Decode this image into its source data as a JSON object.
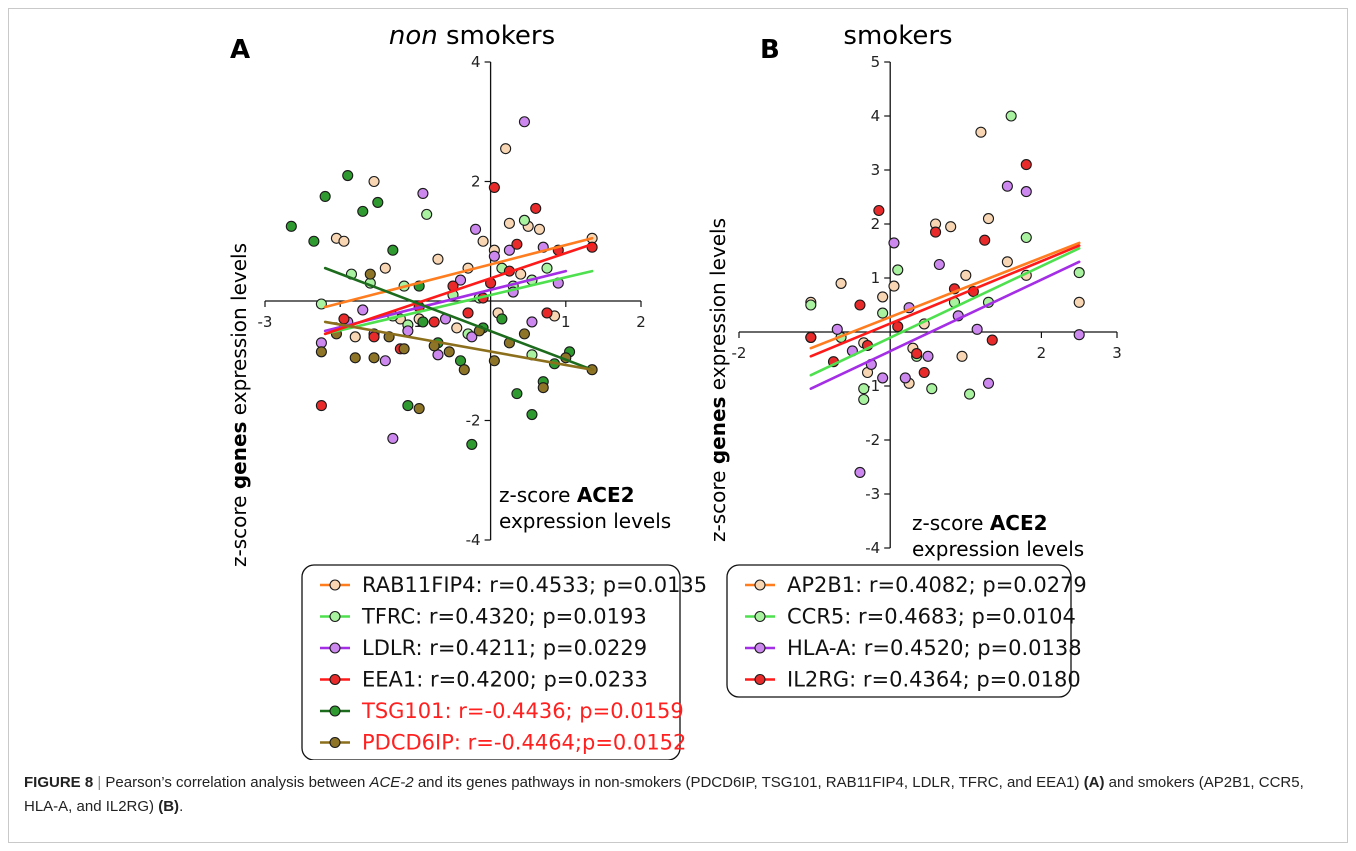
{
  "figure": {
    "caption": {
      "label": "FIGURE 8",
      "sep": " | ",
      "text_before_gene": "Pearson’s correlation analysis between ",
      "gene_italic": "ACE-2",
      "text_mid": " and its genes pathways in non-smokers (PDCD6IP, TSG101, RAB11FIP4, LDLR, TFRC, and EEA1) ",
      "panel_a_ref": "(A)",
      "text_end": " and smokers (AP2B1, CCR5, HLA-A, and IL2RG) ",
      "panel_b_ref": "(B)",
      "period": "."
    }
  },
  "colors": {
    "orange": "#ff7c1f",
    "light_green": "#4fe04f",
    "purple": "#a32ee6",
    "red": "#ff1a1a",
    "dark_green": "#1d6b1d",
    "olive": "#8c6f1c",
    "peach_fill": "#f8d6b4",
    "light_green_fill": "#a9f2a0",
    "purple_fill": "#cc88ee",
    "red_fill": "#e82a2a",
    "dark_green_fill": "#2f9a2f",
    "olive_fill": "#8d7426",
    "negative_text": "#ff2020"
  },
  "chart_data": [
    {
      "panel": "A",
      "type": "scatter",
      "title_italic": "non",
      "title_rest": " smokers",
      "xlabel_line1_prefix": "z-score ",
      "xlabel_line1_bold": "ACE2",
      "xlabel_line2": "expression levels",
      "ylabel_prefix": "z-score ",
      "ylabel_bold": "genes",
      "ylabel_suffix": " expression levels",
      "xlim": [
        -3,
        2
      ],
      "ylim": [
        -4,
        4
      ],
      "xticks": [
        -3,
        -2,
        -1,
        1,
        2
      ],
      "xtick_labels": [
        "-3",
        "-2",
        "-1",
        "1",
        "2"
      ],
      "yticks": [
        -4,
        -2,
        2,
        4
      ],
      "ytick_labels": [
        "-4",
        "-2",
        "2",
        "4"
      ],
      "legend_position": "bottom",
      "series": [
        {
          "name": "RAB11FIP4",
          "stat": "r=0.4533; p=0.0135",
          "legend_text": "RAB11FIP4: r=0.4533; p=0.0135",
          "negative": false,
          "line_color_key": "orange",
          "fill_color_key": "peach_fill",
          "fit": [
            [
              -2.2,
              -0.1
            ],
            [
              1.35,
              1.05
            ]
          ],
          "points": [
            [
              -2.05,
              1.05
            ],
            [
              -1.95,
              1.0
            ],
            [
              -1.55,
              2.0
            ],
            [
              -1.4,
              0.55
            ],
            [
              -1.2,
              -0.3
            ],
            [
              -0.95,
              -0.3
            ],
            [
              -0.7,
              0.7
            ],
            [
              -0.45,
              -0.45
            ],
            [
              -0.3,
              0.55
            ],
            [
              -0.1,
              1.0
            ],
            [
              0.05,
              0.85
            ],
            [
              0.1,
              -0.2
            ],
            [
              0.2,
              2.55
            ],
            [
              0.25,
              1.3
            ],
            [
              0.4,
              0.45
            ],
            [
              0.5,
              1.25
            ],
            [
              0.65,
              1.2
            ],
            [
              1.35,
              1.05
            ],
            [
              0.85,
              -0.25
            ],
            [
              -1.8,
              -0.6
            ]
          ]
        },
        {
          "name": "TFRC",
          "stat": "r=0.4320; p=0.0193",
          "legend_text": "TFRC: r=0.4320; p=0.0193",
          "negative": false,
          "line_color_key": "light_green",
          "fill_color_key": "light_green_fill",
          "fit": [
            [
              -2.2,
              -0.55
            ],
            [
              1.35,
              0.5
            ]
          ],
          "points": [
            [
              -2.25,
              -0.05
            ],
            [
              -1.85,
              0.45
            ],
            [
              -1.6,
              0.3
            ],
            [
              -1.3,
              -0.25
            ],
            [
              -1.15,
              0.25
            ],
            [
              -0.85,
              1.45
            ],
            [
              -0.5,
              0.1
            ],
            [
              -0.3,
              -0.55
            ],
            [
              -0.15,
              0.05
            ],
            [
              0.15,
              0.55
            ],
            [
              0.3,
              0.25
            ],
            [
              0.45,
              1.35
            ],
            [
              0.55,
              0.35
            ],
            [
              0.75,
              0.55
            ],
            [
              0.55,
              -0.9
            ],
            [
              -1.1,
              -0.4
            ]
          ]
        },
        {
          "name": "LDLR",
          "stat": "r=0.4211; p=0.0229",
          "legend_text": "LDLR: r=0.4211; p=0.0229",
          "negative": false,
          "line_color_key": "purple",
          "fill_color_key": "purple_fill",
          "fit": [
            [
              -2.2,
              -0.5
            ],
            [
              1.0,
              0.5
            ]
          ],
          "points": [
            [
              -2.25,
              -0.7
            ],
            [
              -1.9,
              -0.35
            ],
            [
              -1.7,
              -0.15
            ],
            [
              -1.4,
              -1.0
            ],
            [
              -1.3,
              -2.3
            ],
            [
              -1.1,
              -0.5
            ],
            [
              -0.9,
              1.8
            ],
            [
              -0.6,
              -0.3
            ],
            [
              -0.4,
              0.35
            ],
            [
              -0.2,
              1.2
            ],
            [
              0.05,
              0.75
            ],
            [
              0.3,
              0.15
            ],
            [
              0.45,
              3.0
            ],
            [
              0.55,
              -0.35
            ],
            [
              0.7,
              0.9
            ],
            [
              0.9,
              0.3
            ],
            [
              -0.25,
              -0.6
            ],
            [
              -0.7,
              -0.9
            ],
            [
              -1.55,
              -0.55
            ],
            [
              0.25,
              0.85
            ]
          ]
        },
        {
          "name": "EEA1",
          "stat": "r=0.4200; p=0.0233",
          "legend_text": "EEA1: r=0.4200; p=0.0233",
          "negative": false,
          "line_color_key": "red",
          "fill_color_key": "red_fill",
          "fit": [
            [
              -2.2,
              -0.55
            ],
            [
              1.35,
              0.95
            ]
          ],
          "points": [
            [
              -2.25,
              -1.75
            ],
            [
              -1.95,
              -0.3
            ],
            [
              -1.55,
              -0.6
            ],
            [
              -1.2,
              -0.8
            ],
            [
              -0.95,
              -0.1
            ],
            [
              -0.75,
              -0.35
            ],
            [
              -0.5,
              0.25
            ],
            [
              -0.3,
              -0.2
            ],
            [
              -0.1,
              0.05
            ],
            [
              0.05,
              1.9
            ],
            [
              0.25,
              0.5
            ],
            [
              0.35,
              0.95
            ],
            [
              0.6,
              1.55
            ],
            [
              0.75,
              -0.2
            ],
            [
              0.9,
              0.85
            ],
            [
              1.35,
              0.9
            ],
            [
              0.0,
              0.3
            ]
          ]
        },
        {
          "name": "TSG101",
          "stat": "r=-0.4436; p=0.0159",
          "legend_text": "TSG101: r=-0.4436; p=0.0159",
          "negative": true,
          "line_color_key": "dark_green",
          "fill_color_key": "dark_green_fill",
          "fit": [
            [
              -2.2,
              0.55
            ],
            [
              1.35,
              -1.15
            ]
          ],
          "points": [
            [
              -2.65,
              1.25
            ],
            [
              -2.35,
              1.0
            ],
            [
              -2.2,
              1.75
            ],
            [
              -1.9,
              2.1
            ],
            [
              -1.7,
              1.5
            ],
            [
              -1.5,
              1.65
            ],
            [
              -1.3,
              0.85
            ],
            [
              -1.1,
              -1.75
            ],
            [
              -0.9,
              -0.35
            ],
            [
              -0.7,
              -0.7
            ],
            [
              -0.4,
              -1.0
            ],
            [
              -0.25,
              -2.4
            ],
            [
              -0.1,
              -0.45
            ],
            [
              0.15,
              -0.3
            ],
            [
              0.35,
              -1.55
            ],
            [
              0.55,
              -1.9
            ],
            [
              0.7,
              -1.35
            ],
            [
              0.85,
              -1.05
            ],
            [
              1.05,
              -0.85
            ],
            [
              -0.95,
              0.25
            ]
          ]
        },
        {
          "name": "PDCD6IP",
          "stat": "r=-0.4464;p=0.0152",
          "legend_text": "PDCD6IP: r=-0.4464;p=0.0152",
          "negative": true,
          "line_color_key": "olive",
          "fill_color_key": "olive_fill",
          "fit": [
            [
              -2.2,
              -0.35
            ],
            [
              1.35,
              -1.15
            ]
          ],
          "points": [
            [
              -2.25,
              -0.85
            ],
            [
              -2.05,
              -0.55
            ],
            [
              -1.8,
              -0.95
            ],
            [
              -1.55,
              -0.95
            ],
            [
              -1.35,
              -0.6
            ],
            [
              -1.15,
              -0.8
            ],
            [
              -0.95,
              -1.8
            ],
            [
              -0.75,
              -0.75
            ],
            [
              -0.55,
              -0.85
            ],
            [
              -0.35,
              -1.15
            ],
            [
              -0.15,
              -0.5
            ],
            [
              0.05,
              -1.0
            ],
            [
              0.25,
              -0.7
            ],
            [
              0.45,
              -0.55
            ],
            [
              0.7,
              -1.45
            ],
            [
              1.0,
              -0.95
            ],
            [
              1.35,
              -1.15
            ],
            [
              -1.6,
              0.45
            ]
          ]
        }
      ]
    },
    {
      "panel": "B",
      "type": "scatter",
      "title": "smokers",
      "xlabel_line1_prefix": "z-score ",
      "xlabel_line1_bold": "ACE2",
      "xlabel_line2": "expression levels",
      "ylabel_prefix": "z-score ",
      "ylabel_bold": "genes",
      "ylabel_suffix": " expression levels",
      "xlim": [
        -2,
        3
      ],
      "ylim": [
        -4,
        5
      ],
      "xticks": [
        -2,
        2,
        3
      ],
      "xtick_labels": [
        "-2",
        "2",
        "3"
      ],
      "yticks": [
        -4,
        -3,
        -2,
        -1,
        1,
        2,
        3,
        4,
        5
      ],
      "ytick_labels": [
        "-4",
        "-3",
        "-2",
        "-1",
        "1",
        "2",
        "3",
        "4",
        "5"
      ],
      "legend_position": "bottom",
      "series": [
        {
          "name": "AP2B1",
          "stat": "r=0.4082; p=0.0279",
          "legend_text": "AP2B1: r=0.4082; p=0.0279",
          "negative": false,
          "line_color_key": "orange",
          "fill_color_key": "peach_fill",
          "fit": [
            [
              -1.05,
              -0.3
            ],
            [
              2.5,
              1.65
            ]
          ],
          "points": [
            [
              -1.05,
              0.55
            ],
            [
              -0.65,
              0.9
            ],
            [
              -0.3,
              -0.75
            ],
            [
              -0.1,
              0.65
            ],
            [
              0.05,
              0.85
            ],
            [
              0.3,
              -0.3
            ],
            [
              0.45,
              0.15
            ],
            [
              0.6,
              2.0
            ],
            [
              0.8,
              1.95
            ],
            [
              1.0,
              1.05
            ],
            [
              1.2,
              3.7
            ],
            [
              1.3,
              2.1
            ],
            [
              1.55,
              1.3
            ],
            [
              1.8,
              1.05
            ],
            [
              2.5,
              0.55
            ],
            [
              0.25,
              -0.95
            ],
            [
              -0.35,
              -0.2
            ],
            [
              0.95,
              -0.45
            ]
          ]
        },
        {
          "name": "CCR5",
          "stat": "r=0.4683; p=0.0104",
          "legend_text": "CCR5: r=0.4683; p=0.0104",
          "negative": false,
          "line_color_key": "light_green",
          "fill_color_key": "light_green_fill",
          "fit": [
            [
              -1.05,
              -0.8
            ],
            [
              2.5,
              1.55
            ]
          ],
          "points": [
            [
              -1.05,
              0.5
            ],
            [
              -0.65,
              -0.1
            ],
            [
              -0.35,
              -1.25
            ],
            [
              -0.1,
              0.35
            ],
            [
              0.1,
              1.15
            ],
            [
              0.35,
              -0.45
            ],
            [
              0.55,
              -1.05
            ],
            [
              0.85,
              0.55
            ],
            [
              1.05,
              -1.15
            ],
            [
              1.3,
              0.55
            ],
            [
              1.6,
              4.0
            ],
            [
              1.8,
              1.75
            ],
            [
              2.5,
              1.1
            ],
            [
              -0.35,
              -1.05
            ]
          ]
        },
        {
          "name": "HLA-A",
          "stat": "r=0.4520; p=0.0138",
          "legend_text": "HLA-A: r=0.4520; p=0.0138",
          "negative": false,
          "line_color_key": "purple",
          "fill_color_key": "purple_fill",
          "fit": [
            [
              -1.05,
              -1.05
            ],
            [
              2.5,
              1.3
            ]
          ],
          "points": [
            [
              -1.05,
              -0.1
            ],
            [
              -0.7,
              0.05
            ],
            [
              -0.4,
              -2.6
            ],
            [
              -0.25,
              -0.6
            ],
            [
              -0.1,
              -0.85
            ],
            [
              0.05,
              1.65
            ],
            [
              0.25,
              0.45
            ],
            [
              0.5,
              -0.45
            ],
            [
              0.65,
              1.25
            ],
            [
              0.9,
              0.3
            ],
            [
              1.15,
              0.05
            ],
            [
              1.3,
              -0.95
            ],
            [
              1.55,
              2.7
            ],
            [
              1.8,
              2.6
            ],
            [
              2.5,
              -0.05
            ],
            [
              0.2,
              -0.85
            ],
            [
              -0.5,
              -0.35
            ]
          ]
        },
        {
          "name": "IL2RG",
          "stat": "r=0.4364; p=0.0180",
          "legend_text": "IL2RG: r=0.4364; p=0.0180",
          "negative": false,
          "line_color_key": "red",
          "fill_color_key": "red_fill",
          "fit": [
            [
              -1.05,
              -0.45
            ],
            [
              2.5,
              1.6
            ]
          ],
          "points": [
            [
              -1.05,
              -0.1
            ],
            [
              -0.75,
              -0.55
            ],
            [
              -0.4,
              0.5
            ],
            [
              -0.15,
              2.25
            ],
            [
              0.1,
              0.1
            ],
            [
              0.35,
              -0.4
            ],
            [
              0.6,
              1.85
            ],
            [
              0.85,
              0.8
            ],
            [
              1.1,
              0.75
            ],
            [
              1.25,
              1.7
            ],
            [
              1.35,
              -0.15
            ],
            [
              1.8,
              3.1
            ],
            [
              0.45,
              -0.75
            ],
            [
              -0.3,
              -0.25
            ]
          ]
        }
      ]
    }
  ]
}
